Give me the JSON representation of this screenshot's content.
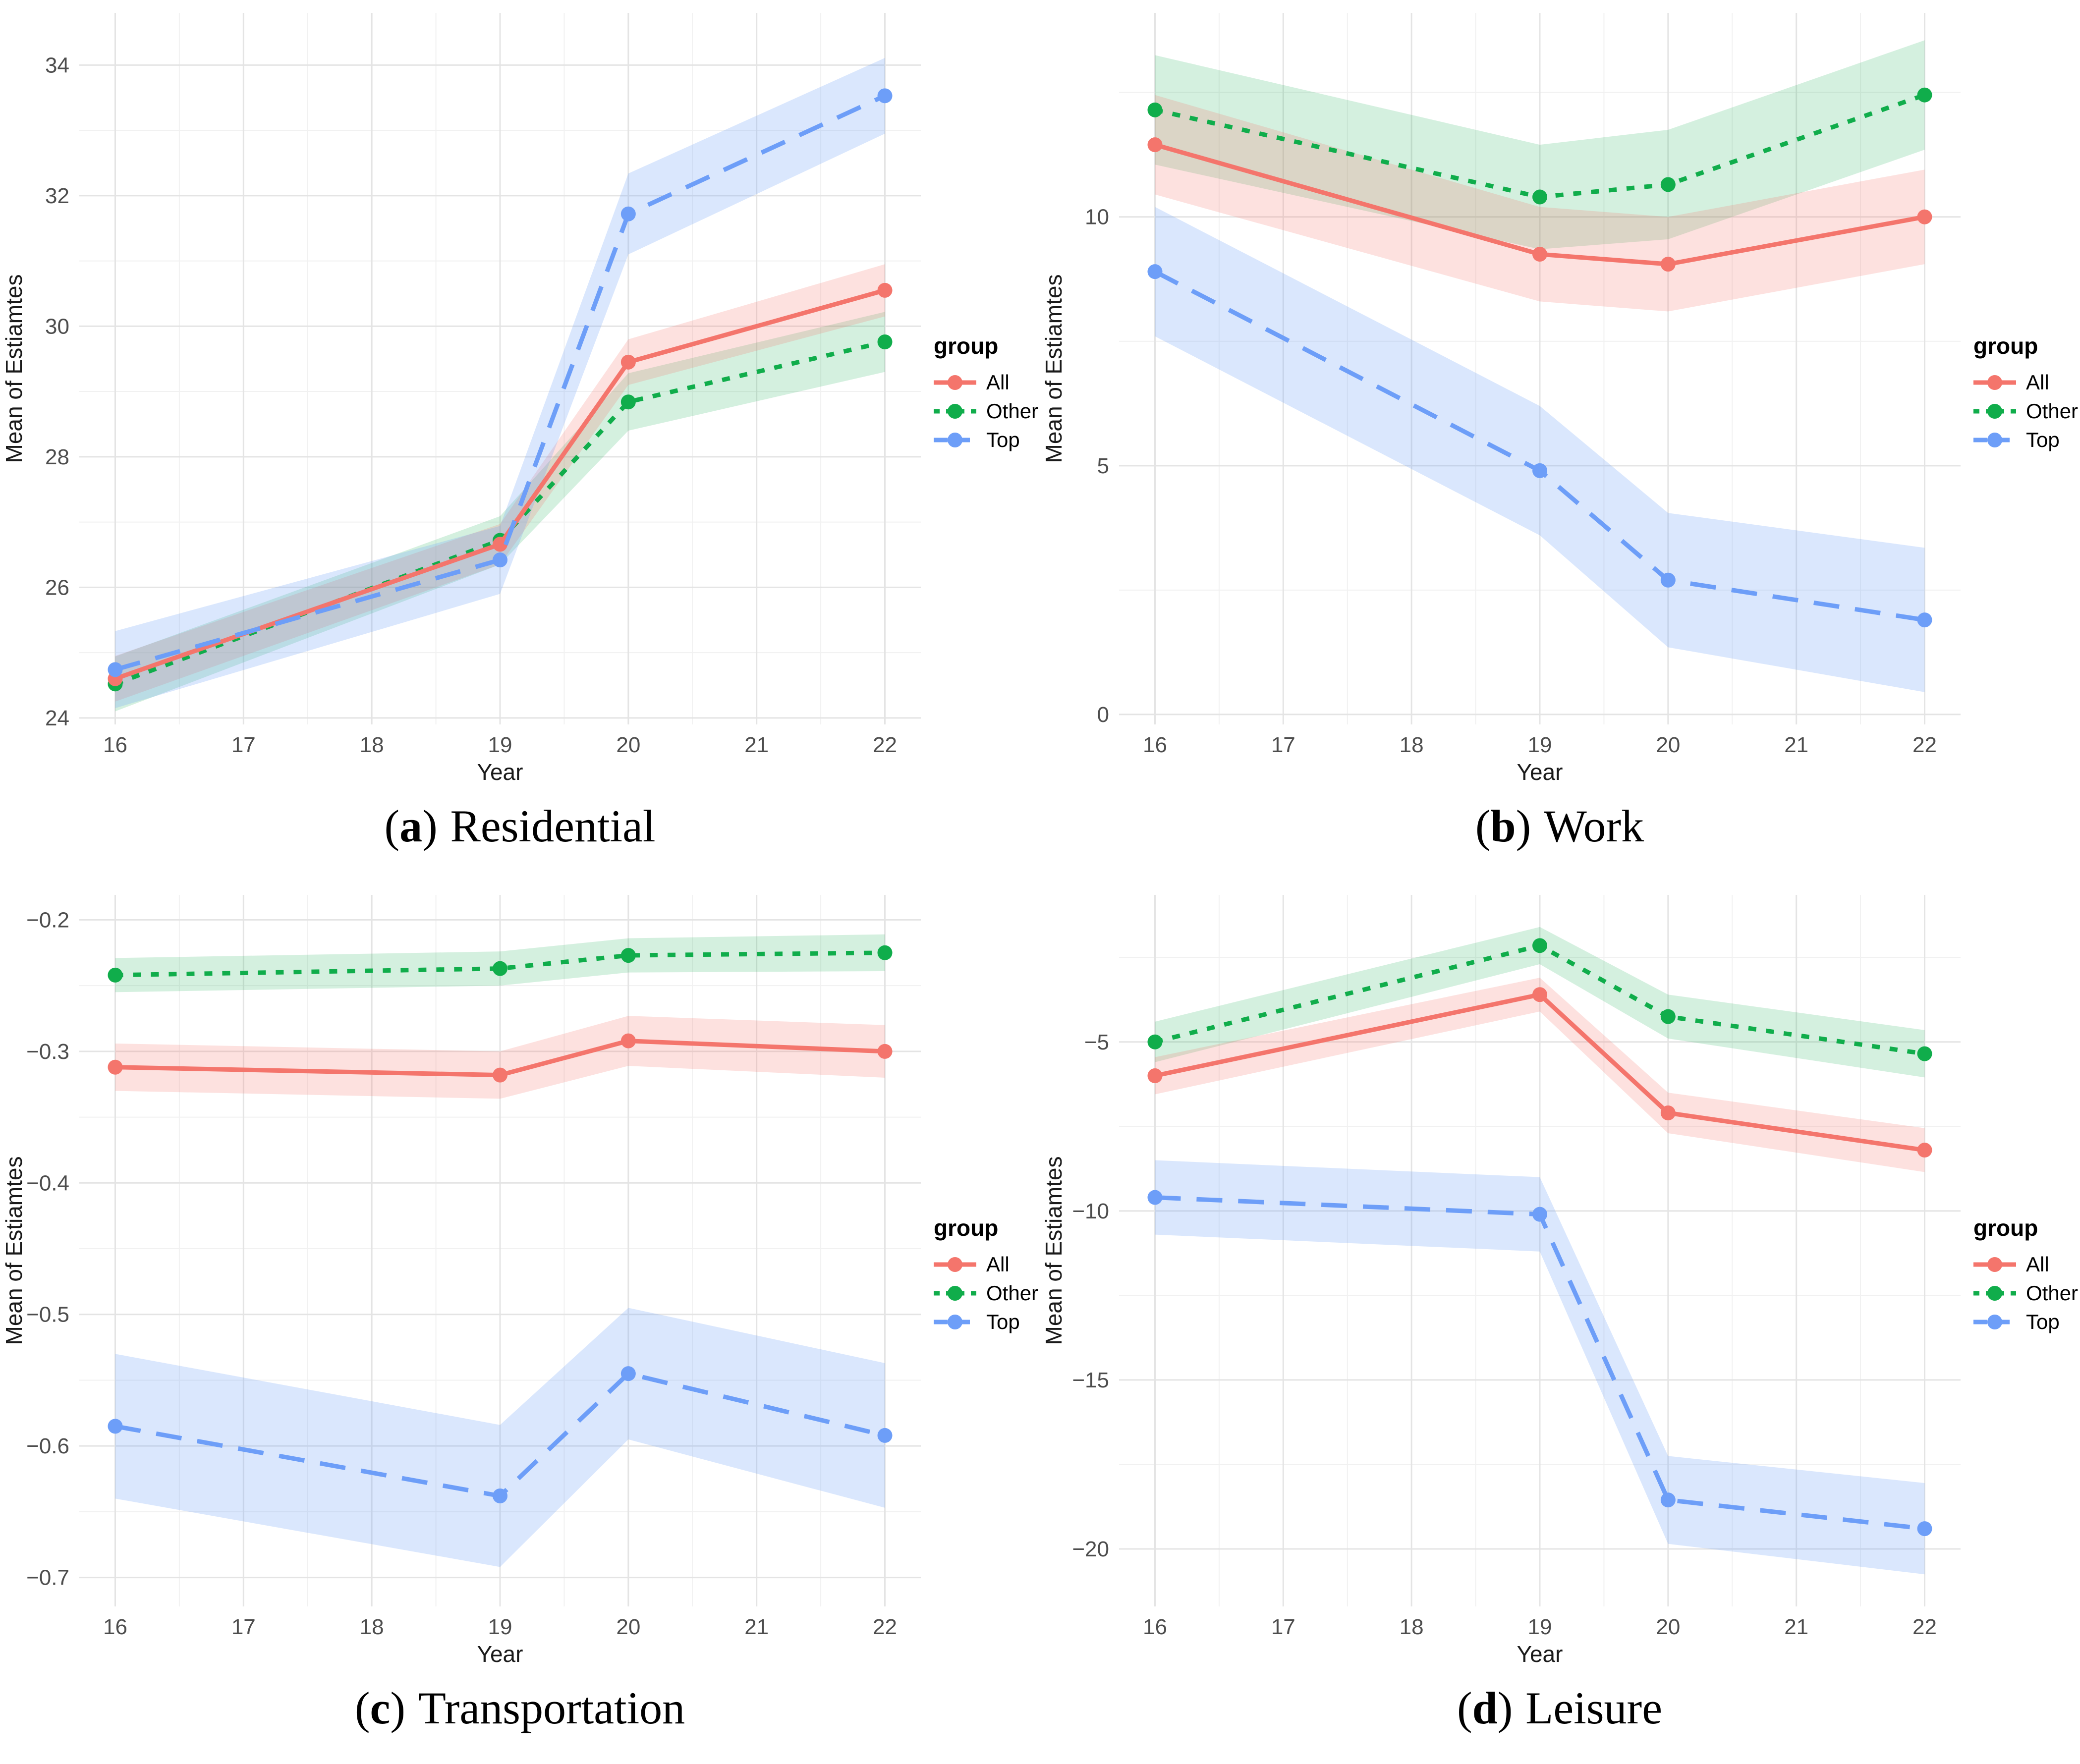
{
  "figure": {
    "background": "#ffffff",
    "grid_major_color": "#e4e4e4",
    "grid_minor_color": "#f1f1f1",
    "tick_label_color": "#4d4d4d",
    "axis_title_color": "#1a1a1a",
    "legend_text_color": "#000000"
  },
  "chart_data": [
    {
      "type": "line",
      "caption": {
        "open": "(",
        "letter": "a",
        "close": ")",
        "label": "Residential"
      },
      "xlabel": "Year",
      "ylabel": "Mean of Estiamtes",
      "legend_title": "group",
      "legend_position": "right",
      "grid": true,
      "x": [
        16,
        19,
        20,
        22
      ],
      "xticks": [
        16,
        17,
        18,
        19,
        20,
        21,
        22
      ],
      "xlim": [
        15.72,
        22.28
      ],
      "ylim": [
        23.9,
        34.8
      ],
      "yticks": [
        24,
        26,
        28,
        30,
        32,
        34
      ],
      "ytick_labels": [
        "24",
        "26",
        "28",
        "30",
        "32",
        "34"
      ],
      "series": [
        {
          "name": "All",
          "color": "#f4756c",
          "dash": "solid",
          "band_opacity": 0.22,
          "values": [
            24.6,
            26.66,
            29.45,
            30.55
          ],
          "lo": [
            24.25,
            26.35,
            29.1,
            30.15
          ],
          "hi": [
            24.95,
            26.97,
            29.8,
            30.95
          ]
        },
        {
          "name": "Other",
          "color": "#10ad4b",
          "dash": "dotted",
          "band_opacity": 0.18,
          "values": [
            24.52,
            26.72,
            28.84,
            29.76
          ],
          "lo": [
            24.1,
            26.35,
            28.4,
            29.3
          ],
          "hi": [
            24.94,
            27.09,
            29.28,
            30.22
          ]
        },
        {
          "name": "Top",
          "color": "#6d9ef8",
          "dash": "dashed",
          "band_opacity": 0.25,
          "values": [
            24.74,
            26.42,
            31.72,
            33.53
          ],
          "lo": [
            24.15,
            25.9,
            31.1,
            32.95
          ],
          "hi": [
            25.33,
            26.94,
            32.34,
            34.11
          ]
        }
      ]
    },
    {
      "type": "line",
      "caption": {
        "open": "(",
        "letter": "b",
        "close": ")",
        "label": "Work"
      },
      "xlabel": "Year",
      "ylabel": "Mean of Estiamtes",
      "legend_title": "group",
      "legend_position": "right",
      "grid": true,
      "x": [
        16,
        19,
        20,
        22
      ],
      "xticks": [
        16,
        17,
        18,
        19,
        20,
        21,
        22
      ],
      "xlim": [
        15.72,
        22.28
      ],
      "ylim": [
        -0.2,
        14.1
      ],
      "yticks": [
        0,
        5,
        10
      ],
      "ytick_labels": [
        "0",
        "5",
        "10"
      ],
      "series": [
        {
          "name": "All",
          "color": "#f4756c",
          "dash": "solid",
          "band_opacity": 0.22,
          "values": [
            11.45,
            9.25,
            9.05,
            10.0
          ],
          "lo": [
            10.45,
            8.3,
            8.1,
            9.05
          ],
          "hi": [
            12.45,
            10.2,
            10.0,
            10.95
          ]
        },
        {
          "name": "Other",
          "color": "#10ad4b",
          "dash": "dotted",
          "band_opacity": 0.18,
          "values": [
            12.15,
            10.4,
            10.65,
            12.45
          ],
          "lo": [
            11.05,
            9.35,
            9.55,
            11.35
          ],
          "hi": [
            13.25,
            11.45,
            11.75,
            13.55
          ]
        },
        {
          "name": "Top",
          "color": "#6d9ef8",
          "dash": "dashed",
          "band_opacity": 0.25,
          "values": [
            8.9,
            4.9,
            2.7,
            1.9
          ],
          "lo": [
            7.6,
            3.6,
            1.35,
            0.45
          ],
          "hi": [
            10.2,
            6.2,
            4.05,
            3.35
          ]
        }
      ]
    },
    {
      "type": "line",
      "caption": {
        "open": "(",
        "letter": "c",
        "close": ")",
        "label": "Transportation"
      },
      "xlabel": "Year",
      "ylabel": "Mean of Estiamtes",
      "legend_title": "group",
      "legend_position": "right",
      "grid": true,
      "x": [
        16,
        19,
        20,
        22
      ],
      "xticks": [
        16,
        17,
        18,
        19,
        20,
        21,
        22
      ],
      "xlim": [
        15.72,
        22.28
      ],
      "ylim": [
        -0.722,
        -0.181
      ],
      "yticks": [
        -0.7,
        -0.6,
        -0.5,
        -0.4,
        -0.3,
        -0.2
      ],
      "ytick_labels": [
        "−0.7",
        "−0.6",
        "−0.5",
        "−0.4",
        "−0.3",
        "−0.2"
      ],
      "series": [
        {
          "name": "All",
          "color": "#f4756c",
          "dash": "solid",
          "band_opacity": 0.22,
          "values": [
            -0.312,
            -0.318,
            -0.292,
            -0.3
          ],
          "lo": [
            -0.33,
            -0.336,
            -0.311,
            -0.32
          ],
          "hi": [
            -0.294,
            -0.3,
            -0.273,
            -0.28
          ]
        },
        {
          "name": "Other",
          "color": "#10ad4b",
          "dash": "dotted",
          "band_opacity": 0.18,
          "values": [
            -0.242,
            -0.237,
            -0.227,
            -0.225
          ],
          "lo": [
            -0.255,
            -0.25,
            -0.24,
            -0.239
          ],
          "hi": [
            -0.229,
            -0.224,
            -0.214,
            -0.211
          ]
        },
        {
          "name": "Top",
          "color": "#6d9ef8",
          "dash": "dashed",
          "band_opacity": 0.25,
          "values": [
            -0.585,
            -0.638,
            -0.545,
            -0.592
          ],
          "lo": [
            -0.64,
            -0.692,
            -0.595,
            -0.647
          ],
          "hi": [
            -0.53,
            -0.584,
            -0.495,
            -0.537
          ]
        }
      ]
    },
    {
      "type": "line",
      "caption": {
        "open": "(",
        "letter": "d",
        "close": ")",
        "label": "Leisure"
      },
      "xlabel": "Year",
      "ylabel": "Mean of Estiamtes",
      "legend_title": "group",
      "legend_position": "right",
      "grid": true,
      "x": [
        16,
        19,
        20,
        22
      ],
      "xticks": [
        16,
        17,
        18,
        19,
        20,
        21,
        22
      ],
      "xlim": [
        15.72,
        22.28
      ],
      "ylim": [
        -21.7,
        -0.65
      ],
      "yticks": [
        -20,
        -15,
        -10,
        -5
      ],
      "ytick_labels": [
        "−20",
        "−15",
        "−10",
        "−5"
      ],
      "series": [
        {
          "name": "All",
          "color": "#f4756c",
          "dash": "solid",
          "band_opacity": 0.22,
          "values": [
            -6.0,
            -3.6,
            -7.1,
            -8.2
          ],
          "lo": [
            -6.55,
            -4.1,
            -7.7,
            -8.85
          ],
          "hi": [
            -5.45,
            -3.1,
            -6.5,
            -7.55
          ]
        },
        {
          "name": "Other",
          "color": "#10ad4b",
          "dash": "dotted",
          "band_opacity": 0.18,
          "values": [
            -5.0,
            -2.15,
            -4.25,
            -5.35
          ],
          "lo": [
            -5.6,
            -2.7,
            -4.9,
            -6.05
          ],
          "hi": [
            -4.4,
            -1.6,
            -3.6,
            -4.65
          ]
        },
        {
          "name": "Top",
          "color": "#6d9ef8",
          "dash": "dashed",
          "band_opacity": 0.25,
          "values": [
            -9.6,
            -10.1,
            -18.55,
            -19.4
          ],
          "lo": [
            -10.7,
            -11.2,
            -19.85,
            -20.75
          ],
          "hi": [
            -8.5,
            -9.0,
            -17.25,
            -18.05
          ]
        }
      ]
    }
  ]
}
